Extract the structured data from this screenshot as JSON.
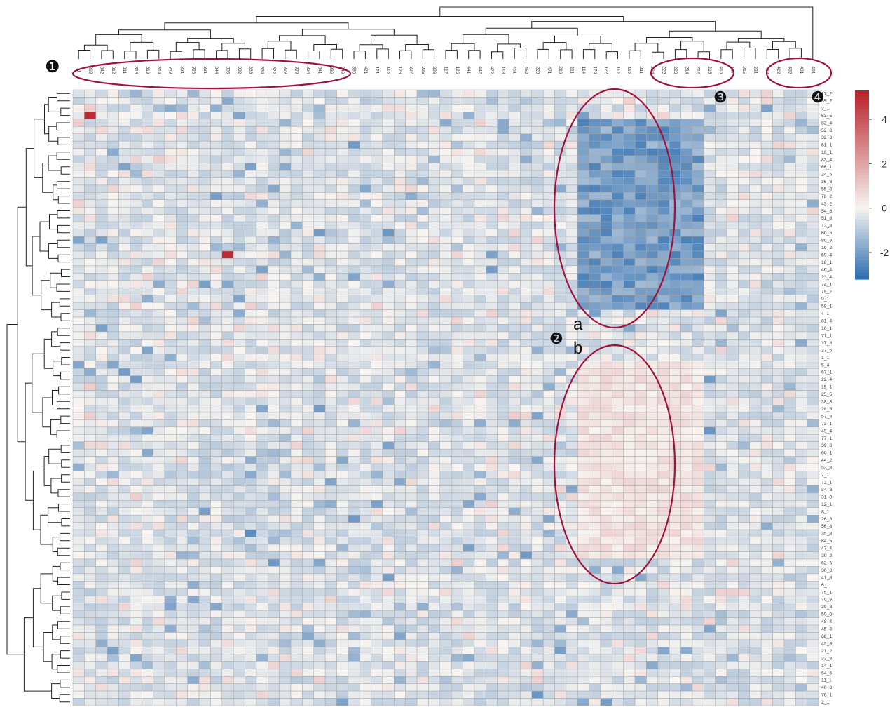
{
  "chart_data": {
    "type": "heatmap",
    "title": "",
    "xlabel": "",
    "ylabel": "",
    "columns": [
      "11",
      "392",
      "342",
      "312",
      "311",
      "313",
      "319",
      "314",
      "343",
      "321",
      "325",
      "331",
      "344",
      "335",
      "332",
      "333",
      "334",
      "322",
      "329",
      "323",
      "324",
      "341",
      "339",
      "349",
      "395",
      "421",
      "121",
      "116",
      "126",
      "227",
      "225",
      "226",
      "117",
      "125",
      "441",
      "442",
      "472",
      "118",
      "451",
      "452",
      "228",
      "471",
      "216",
      "111",
      "114",
      "124",
      "122",
      "112",
      "115",
      "211",
      "224",
      "222",
      "223",
      "214",
      "212",
      "213",
      "415",
      "127",
      "215",
      "221",
      "413",
      "422",
      "432",
      "431",
      "461"
    ],
    "rows": [
      "17_2",
      "65_7",
      "3_1",
      "63_5",
      "82_4",
      "52_8",
      "32_8",
      "61_1",
      "16_1",
      "83_4",
      "66_1",
      "24_5",
      "36_8",
      "55_8",
      "78_2",
      "43_2",
      "54_8",
      "51_8",
      "13_8",
      "60_5",
      "80_3",
      "19_2",
      "69_4",
      "18_1",
      "46_4",
      "23_4",
      "74_1",
      "79_2",
      "9_1",
      "58_1",
      "4_1",
      "81_4",
      "10_1",
      "71_1",
      "37_8",
      "27_5",
      "1_1",
      "5_4",
      "67_1",
      "22_4",
      "15_1",
      "25_5",
      "38_8",
      "28_5",
      "57_8",
      "73_1",
      "49_4",
      "77_1",
      "39_8",
      "60_1",
      "44_2",
      "53_8",
      "7_1",
      "72_1",
      "34_8",
      "31_8",
      "12_1",
      "8_1",
      "26_5",
      "56_8",
      "35_8",
      "84_5",
      "47_4",
      "20_2",
      "62_5",
      "30_8",
      "41_8",
      "6_1",
      "75_1",
      "70_8",
      "29_8",
      "59_8",
      "48_4",
      "45_3",
      "68_1",
      "42_8",
      "21_2",
      "33_8",
      "14_1",
      "64_5",
      "11_1",
      "40_8",
      "76_1",
      "2_1"
    ],
    "scale": {
      "min": -3.2,
      "max": 5.3,
      "ticks": [
        4,
        2,
        0,
        -2
      ],
      "colors": {
        "low": "#2c6cae",
        "mid": "#f7f4f1",
        "high": "#b8202a"
      }
    },
    "notable_cells": [
      {
        "row": "63_5",
        "column": "392",
        "value": 5.0
      },
      {
        "row": "69_4",
        "column": "335",
        "value": 5.0
      }
    ],
    "annotations": {
      "marker_1": "❶",
      "marker_2": "❷",
      "marker_3": "❸",
      "marker_4": "❹",
      "label_a": "a",
      "label_b": "b"
    },
    "grid": true,
    "legend": "right"
  }
}
